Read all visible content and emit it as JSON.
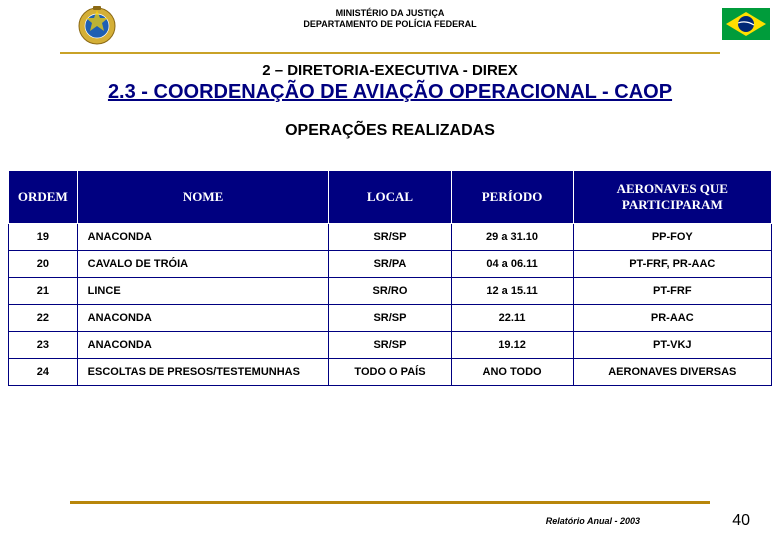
{
  "colors": {
    "gold": "#c9a227",
    "navy": "#000080",
    "widthGold": "#b8860b"
  },
  "header": {
    "line1": "MINISTÉRIO DA JUSTIÇA",
    "line2": "DEPARTAMENTO DE POLÍCIA FEDERAL"
  },
  "titles": {
    "sub1": "2 – DIRETORIA-EXECUTIVA - DIREX",
    "sub2": "2.3 - COORDENAÇÃO DE AVIAÇÃO OPERACIONAL - CAOP",
    "section": "OPERAÇÕES REALIZADAS"
  },
  "table": {
    "headers": {
      "ordem": "ORDEM",
      "nome": "NOME",
      "local": "LOCAL",
      "periodo": "PERÍODO",
      "aero": "AERONAVES QUE PARTICIPARAM"
    },
    "rows": [
      {
        "ordem": "19",
        "nome": "ANACONDA",
        "local": "SR/SP",
        "periodo": "29 a 31.10",
        "aero": "PP-FOY"
      },
      {
        "ordem": "20",
        "nome": "CAVALO DE TRÓIA",
        "local": "SR/PA",
        "periodo": "04 a 06.11",
        "aero": "PT-FRF, PR-AAC"
      },
      {
        "ordem": "21",
        "nome": "LINCE",
        "local": "SR/RO",
        "periodo": "12 a 15.11",
        "aero": "PT-FRF"
      },
      {
        "ordem": "22",
        "nome": "ANACONDA",
        "local": "SR/SP",
        "periodo": "22.11",
        "aero": "PR-AAC"
      },
      {
        "ordem": "23",
        "nome": "ANACONDA",
        "local": "SR/SP",
        "periodo": "19.12",
        "aero": "PT-VKJ"
      },
      {
        "ordem": "24",
        "nome": "ESCOLTAS DE PRESOS/TESTEMUNHAS",
        "local": "TODO O PAÍS",
        "periodo": "ANO TODO",
        "aero": "AERONAVES DIVERSAS"
      }
    ]
  },
  "footer": {
    "report": "Relatório Anual - 2003",
    "page": "40"
  }
}
